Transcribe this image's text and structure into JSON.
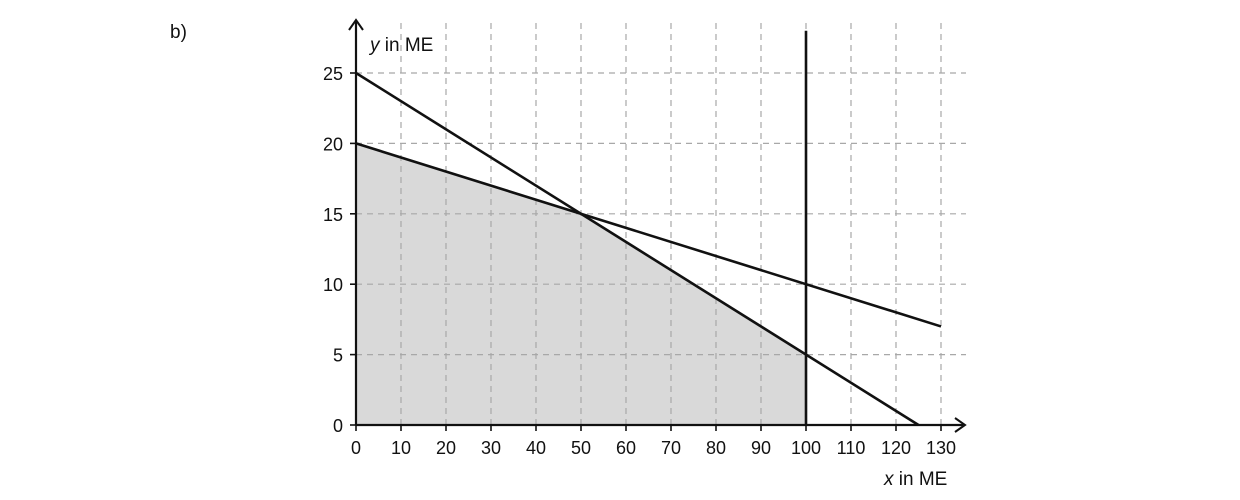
{
  "part_label": "b)",
  "chart_data": {
    "type": "line",
    "xlabel_var": "x",
    "xlabel_unit": " in ME",
    "ylabel_var": "y",
    "ylabel_unit": " in ME",
    "xlim": [
      0,
      130
    ],
    "ylim": [
      0,
      25
    ],
    "x_ticks": [
      0,
      10,
      20,
      30,
      40,
      50,
      60,
      70,
      80,
      90,
      100,
      110,
      120,
      130
    ],
    "y_ticks": [
      0,
      5,
      10,
      15,
      20,
      25
    ],
    "grid": true,
    "lines": [
      {
        "points": [
          [
            0,
            25
          ],
          [
            125,
            0
          ]
        ]
      },
      {
        "points": [
          [
            0,
            20
          ],
          [
            130,
            7
          ]
        ]
      },
      {
        "points": [
          [
            100,
            0
          ],
          [
            100,
            28
          ]
        ]
      }
    ],
    "feasible_region": {
      "fill_color": "#d9d9d9",
      "points": [
        [
          0,
          0
        ],
        [
          0,
          20
        ],
        [
          50,
          15
        ],
        [
          100,
          5
        ],
        [
          100,
          0
        ]
      ]
    }
  }
}
